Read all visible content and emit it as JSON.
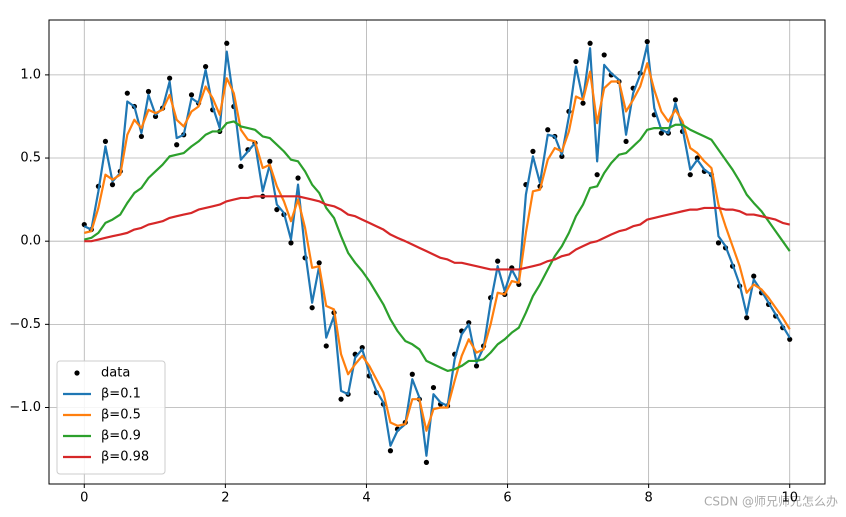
{
  "chart_data": {
    "type": "line",
    "grid": true,
    "legend": "lower left",
    "xlim": [
      -0.5,
      10.5
    ],
    "ylim": [
      -1.46,
      1.33
    ],
    "xticks": [
      0,
      2,
      4,
      6,
      8,
      10
    ],
    "yticks": [
      {
        "value": -1.0,
        "label": "−1.0"
      },
      {
        "value": -0.5,
        "label": "−0.5"
      },
      {
        "value": 0.0,
        "label": "0.0"
      },
      {
        "value": 0.5,
        "label": "0.5"
      },
      {
        "value": 1.0,
        "label": "1.0"
      }
    ],
    "x": [
      0,
      0.1,
      0.2,
      0.3,
      0.4,
      0.51,
      0.61,
      0.71,
      0.81,
      0.91,
      1.01,
      1.11,
      1.21,
      1.31,
      1.41,
      1.52,
      1.62,
      1.72,
      1.82,
      1.92,
      2.02,
      2.12,
      2.22,
      2.32,
      2.42,
      2.53,
      2.63,
      2.73,
      2.83,
      2.93,
      3.03,
      3.13,
      3.23,
      3.33,
      3.43,
      3.54,
      3.64,
      3.74,
      3.84,
      3.94,
      4.04,
      4.14,
      4.24,
      4.34,
      4.44,
      4.55,
      4.65,
      4.75,
      4.85,
      4.95,
      5.05,
      5.15,
      5.25,
      5.35,
      5.45,
      5.56,
      5.66,
      5.76,
      5.86,
      5.96,
      6.06,
      6.16,
      6.26,
      6.36,
      6.46,
      6.57,
      6.67,
      6.77,
      6.87,
      6.97,
      7.07,
      7.17,
      7.27,
      7.37,
      7.47,
      7.58,
      7.68,
      7.78,
      7.88,
      7.98,
      8.08,
      8.18,
      8.28,
      8.38,
      8.48,
      8.59,
      8.69,
      8.79,
      8.89,
      8.99,
      9.09,
      9.19,
      9.29,
      9.39,
      9.49,
      9.6,
      9.7,
      9.8,
      9.9,
      10
    ],
    "series": [
      {
        "name": "data",
        "mode": "markers",
        "color": "#000000",
        "values": [
          0.1,
          0.07,
          0.33,
          0.6,
          0.34,
          0.42,
          0.89,
          0.81,
          0.63,
          0.9,
          0.75,
          0.8,
          0.98,
          0.58,
          0.64,
          0.88,
          0.83,
          1.05,
          0.79,
          0.66,
          1.19,
          0.81,
          0.45,
          0.55,
          0.59,
          0.27,
          0.48,
          0.19,
          0.16,
          -0.01,
          0.38,
          -0.1,
          -0.4,
          -0.13,
          -0.63,
          -0.43,
          -0.95,
          -0.92,
          -0.68,
          -0.64,
          -0.81,
          -0.91,
          -0.98,
          -1.26,
          -1.13,
          -1.09,
          -0.8,
          -0.95,
          -1.33,
          -0.88,
          -0.98,
          -0.99,
          -0.68,
          -0.54,
          -0.49,
          -0.75,
          -0.63,
          -0.34,
          -0.12,
          -0.32,
          -0.16,
          -0.26,
          0.34,
          0.54,
          0.33,
          0.67,
          0.63,
          0.51,
          0.78,
          1.08,
          0.83,
          1.19,
          0.4,
          1.12,
          1.0,
          0.96,
          0.6,
          0.92,
          1.01,
          1.2,
          0.76,
          0.65,
          0.65,
          0.85,
          0.66,
          0.4,
          0.5,
          0.42,
          0.4,
          -0.01,
          -0.04,
          -0.15,
          -0.27,
          -0.46,
          -0.21,
          -0.31,
          -0.38,
          -0.45,
          -0.52,
          -0.59
        ]
      },
      {
        "name": "β=0.1",
        "mode": "line",
        "color": "#1f77b4",
        "values": [
          0.09,
          0.07,
          0.3,
          0.57,
          0.36,
          0.41,
          0.84,
          0.81,
          0.65,
          0.88,
          0.76,
          0.8,
          0.96,
          0.62,
          0.64,
          0.86,
          0.83,
          1.03,
          0.81,
          0.68,
          1.14,
          0.84,
          0.49,
          0.54,
          0.59,
          0.3,
          0.46,
          0.22,
          0.17,
          0.01,
          0.34,
          -0.06,
          -0.37,
          -0.15,
          -0.58,
          -0.45,
          -0.9,
          -0.92,
          -0.7,
          -0.65,
          -0.79,
          -0.9,
          -0.97,
          -1.23,
          -1.14,
          -1.1,
          -0.83,
          -0.94,
          -1.29,
          -0.92,
          -0.97,
          -0.99,
          -0.71,
          -0.56,
          -0.5,
          -0.73,
          -0.64,
          -0.37,
          -0.15,
          -0.3,
          -0.17,
          -0.25,
          0.28,
          0.51,
          0.35,
          0.64,
          0.63,
          0.52,
          0.75,
          1.05,
          0.85,
          1.16,
          0.48,
          1.06,
          1.01,
          0.97,
          0.64,
          0.89,
          1.0,
          1.18,
          0.8,
          0.67,
          0.65,
          0.83,
          0.68,
          0.43,
          0.49,
          0.43,
          0.4,
          0.03,
          -0.03,
          -0.14,
          -0.26,
          -0.44,
          -0.23,
          -0.3,
          -0.37,
          -0.44,
          -0.51,
          -0.58
        ]
      },
      {
        "name": "β=0.5",
        "mode": "line",
        "color": "#ff7f0e",
        "values": [
          0.05,
          0.06,
          0.2,
          0.4,
          0.37,
          0.4,
          0.64,
          0.73,
          0.68,
          0.79,
          0.77,
          0.79,
          0.88,
          0.73,
          0.69,
          0.78,
          0.81,
          0.93,
          0.86,
          0.76,
          0.98,
          0.89,
          0.67,
          0.61,
          0.6,
          0.44,
          0.46,
          0.33,
          0.24,
          0.12,
          0.25,
          0.08,
          -0.16,
          -0.15,
          -0.39,
          -0.41,
          -0.68,
          -0.8,
          -0.74,
          -0.69,
          -0.75,
          -0.83,
          -0.91,
          -1.09,
          -1.11,
          -1.1,
          -0.95,
          -0.95,
          -1.14,
          -1.01,
          -1.0,
          -1.0,
          -0.84,
          -0.69,
          -0.59,
          -0.67,
          -0.65,
          -0.5,
          -0.31,
          -0.32,
          -0.24,
          -0.25,
          0.05,
          0.3,
          0.31,
          0.49,
          0.56,
          0.54,
          0.66,
          0.87,
          0.85,
          1.02,
          0.71,
          0.92,
          0.96,
          0.96,
          0.78,
          0.85,
          0.93,
          1.07,
          0.91,
          0.78,
          0.72,
          0.79,
          0.72,
          0.56,
          0.53,
          0.48,
          0.44,
          0.22,
          0.09,
          -0.03,
          -0.15,
          -0.31,
          -0.26,
          -0.29,
          -0.34,
          -0.4,
          -0.46,
          -0.53
        ]
      },
      {
        "name": "β=0.9",
        "mode": "line",
        "color": "#2ca02c",
        "values": [
          0.01,
          0.02,
          0.05,
          0.11,
          0.13,
          0.16,
          0.23,
          0.29,
          0.32,
          0.38,
          0.42,
          0.46,
          0.51,
          0.52,
          0.53,
          0.57,
          0.6,
          0.64,
          0.66,
          0.66,
          0.71,
          0.72,
          0.69,
          0.68,
          0.67,
          0.63,
          0.62,
          0.58,
          0.54,
          0.49,
          0.48,
          0.42,
          0.34,
          0.29,
          0.2,
          0.14,
          0.03,
          -0.07,
          -0.13,
          -0.18,
          -0.24,
          -0.31,
          -0.38,
          -0.47,
          -0.54,
          -0.6,
          -0.62,
          -0.65,
          -0.72,
          -0.74,
          -0.76,
          -0.78,
          -0.77,
          -0.75,
          -0.72,
          -0.72,
          -0.71,
          -0.67,
          -0.62,
          -0.59,
          -0.55,
          -0.52,
          -0.43,
          -0.33,
          -0.26,
          -0.17,
          -0.09,
          -0.03,
          0.05,
          0.15,
          0.22,
          0.32,
          0.33,
          0.41,
          0.47,
          0.52,
          0.53,
          0.57,
          0.61,
          0.67,
          0.68,
          0.68,
          0.68,
          0.7,
          0.7,
          0.67,
          0.65,
          0.63,
          0.61,
          0.55,
          0.49,
          0.43,
          0.36,
          0.28,
          0.23,
          0.18,
          0.12,
          0.06,
          0.0,
          -0.06
        ]
      },
      {
        "name": "β=0.98",
        "mode": "line",
        "color": "#d62728",
        "values": [
          0.0,
          0.0,
          0.01,
          0.02,
          0.03,
          0.04,
          0.05,
          0.07,
          0.08,
          0.1,
          0.11,
          0.12,
          0.14,
          0.15,
          0.16,
          0.17,
          0.19,
          0.2,
          0.21,
          0.22,
          0.24,
          0.25,
          0.26,
          0.26,
          0.27,
          0.27,
          0.27,
          0.27,
          0.27,
          0.27,
          0.27,
          0.26,
          0.25,
          0.24,
          0.22,
          0.21,
          0.19,
          0.16,
          0.15,
          0.13,
          0.11,
          0.09,
          0.07,
          0.04,
          0.02,
          0.0,
          -0.02,
          -0.04,
          -0.06,
          -0.08,
          -0.1,
          -0.11,
          -0.13,
          -0.13,
          -0.14,
          -0.15,
          -0.16,
          -0.17,
          -0.17,
          -0.17,
          -0.17,
          -0.17,
          -0.16,
          -0.15,
          -0.14,
          -0.12,
          -0.11,
          -0.09,
          -0.08,
          -0.05,
          -0.03,
          -0.01,
          0.0,
          0.02,
          0.04,
          0.06,
          0.07,
          0.09,
          0.1,
          0.13,
          0.14,
          0.15,
          0.16,
          0.17,
          0.18,
          0.19,
          0.19,
          0.2,
          0.2,
          0.2,
          0.19,
          0.19,
          0.18,
          0.16,
          0.16,
          0.15,
          0.14,
          0.13,
          0.11,
          0.1
        ]
      }
    ],
    "watermark": "CSDN @师兄师兄怎么办"
  }
}
